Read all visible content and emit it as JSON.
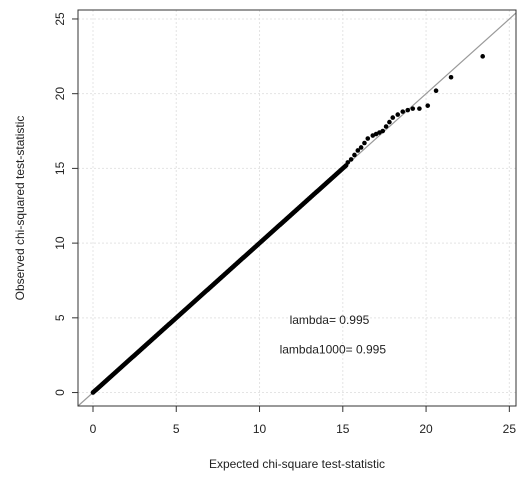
{
  "chart_data": {
    "type": "scatter",
    "title": "",
    "xlabel": "Expected chi-square test-statistic",
    "ylabel": "Observed chi-squared test-statistic",
    "xlim": [
      -0.9,
      25.4
    ],
    "ylim": [
      -0.9,
      25.6
    ],
    "x_ticks": [
      0,
      5,
      10,
      15,
      20,
      25
    ],
    "y_ticks": [
      0,
      5,
      10,
      15,
      20,
      25
    ],
    "grid": true,
    "reference_line": {
      "intercept": 0,
      "slope": 1,
      "color": "#9a9a9a"
    },
    "point_color": "#000000",
    "annotations": [
      "lambda= 0.995",
      "lambda1000= 0.995"
    ],
    "series": [
      {
        "diagonal_range": [
          0,
          15.2
        ],
        "tail_points": [
          [
            15.3,
            15.4
          ],
          [
            15.5,
            15.6
          ],
          [
            15.7,
            15.9
          ],
          [
            15.9,
            16.2
          ],
          [
            16.1,
            16.4
          ],
          [
            16.3,
            16.7
          ],
          [
            16.5,
            17.0
          ],
          [
            16.8,
            17.2
          ],
          [
            17.0,
            17.3
          ],
          [
            17.2,
            17.4
          ],
          [
            17.4,
            17.5
          ],
          [
            17.6,
            17.8
          ],
          [
            17.8,
            18.1
          ],
          [
            18.0,
            18.4
          ],
          [
            18.3,
            18.6
          ],
          [
            18.6,
            18.8
          ],
          [
            18.9,
            18.9
          ],
          [
            19.2,
            19.0
          ],
          [
            19.6,
            19.0
          ],
          [
            20.1,
            19.2
          ],
          [
            20.6,
            20.2
          ],
          [
            21.5,
            21.1
          ],
          [
            23.4,
            22.5
          ]
        ]
      }
    ]
  }
}
